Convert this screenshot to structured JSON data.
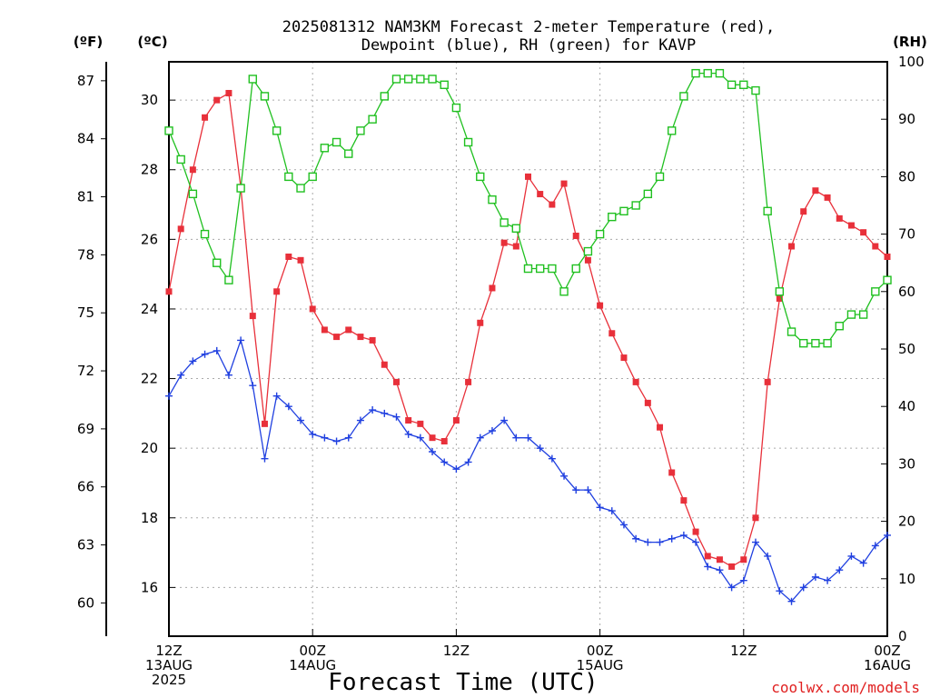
{
  "header": {
    "title_line1": "2025081312 NAM3KM Forecast 2-meter Temperature (red),",
    "title_line2": "Dewpoint (blue), RH (green) for KAVP"
  },
  "credit": "coolwx.com/models",
  "chart_data": {
    "type": "line",
    "title": "2025081312 NAM3KM Forecast 2-meter Temperature (red), Dewpoint (blue), RH (green) for KAVP",
    "xlabel": "Forecast Time (UTC)",
    "x_start": "2025-08-13 12Z",
    "x_step_hours": 1,
    "x_ticks": [
      {
        "line1": "12Z",
        "line2": "13AUG",
        "line3": "2025"
      },
      {
        "line1": "00Z",
        "line2": "14AUG",
        "line3": ""
      },
      {
        "line1": "12Z",
        "line2": "",
        "line3": ""
      },
      {
        "line1": "00Z",
        "line2": "15AUG",
        "line3": ""
      },
      {
        "line1": "12Z",
        "line2": "",
        "line3": ""
      },
      {
        "line1": "00Z",
        "line2": "16AUG",
        "line3": ""
      }
    ],
    "y_celsius": {
      "label": "(ºC)",
      "ticks": [
        16,
        18,
        20,
        22,
        24,
        26,
        28,
        30
      ],
      "ylim": [
        14.6,
        31.1
      ]
    },
    "y_fahrenheit": {
      "label": "(ºF)",
      "ticks": [
        60,
        63,
        66,
        69,
        72,
        75,
        78,
        81,
        84,
        87
      ]
    },
    "y_rh": {
      "label": "(RH)",
      "ticks": [
        0,
        10,
        20,
        30,
        40,
        50,
        60,
        70,
        80,
        90,
        100
      ],
      "ylim": [
        0,
        100
      ]
    },
    "grid": true,
    "series": [
      {
        "name": "Temperature",
        "axis": "C",
        "color": "#e8303a",
        "marker": "filled-square",
        "values": [
          24.5,
          26.3,
          28.0,
          29.5,
          30.0,
          30.2,
          27.5,
          23.8,
          20.7,
          24.5,
          25.5,
          25.4,
          24.0,
          23.4,
          23.2,
          23.4,
          23.2,
          23.1,
          22.4,
          21.9,
          20.8,
          20.7,
          20.3,
          20.2,
          20.8,
          21.9,
          23.6,
          24.6,
          25.9,
          25.8,
          27.8,
          27.3,
          27.0,
          27.6,
          26.1,
          25.4,
          24.1,
          23.3,
          22.6,
          21.9,
          21.3,
          20.6,
          19.3,
          18.5,
          17.6,
          16.9,
          16.8,
          16.6,
          16.8,
          18.0,
          21.9,
          24.3,
          25.8,
          26.8,
          27.4,
          27.2,
          26.6,
          26.4,
          26.2,
          25.8,
          25.5
        ]
      },
      {
        "name": "Dewpoint",
        "axis": "C",
        "color": "#2040e0",
        "marker": "plus",
        "values": [
          21.5,
          22.1,
          22.5,
          22.7,
          22.8,
          22.1,
          23.1,
          21.8,
          19.7,
          21.5,
          21.2,
          20.8,
          20.4,
          20.3,
          20.2,
          20.3,
          20.8,
          21.1,
          21.0,
          20.9,
          20.4,
          20.3,
          19.9,
          19.6,
          19.4,
          19.6,
          20.3,
          20.5,
          20.8,
          20.3,
          20.3,
          20.0,
          19.7,
          19.2,
          18.8,
          18.8,
          18.3,
          18.2,
          17.8,
          17.4,
          17.3,
          17.3,
          17.4,
          17.5,
          17.3,
          16.6,
          16.5,
          16.0,
          16.2,
          17.3,
          16.9,
          15.9,
          15.6,
          16.0,
          16.3,
          16.2,
          16.5,
          16.9,
          16.7,
          17.2,
          17.5
        ]
      },
      {
        "name": "RH",
        "axis": "RH",
        "color": "#20c020",
        "marker": "open-square",
        "values": [
          88,
          83,
          77,
          70,
          65,
          62,
          78,
          97,
          94,
          88,
          80,
          78,
          80,
          85,
          86,
          84,
          88,
          90,
          94,
          97,
          97,
          97,
          97,
          96,
          92,
          86,
          80,
          76,
          72,
          71,
          64,
          64,
          64,
          60,
          64,
          67,
          70,
          73,
          74,
          75,
          77,
          80,
          88,
          94,
          98,
          98,
          98,
          96,
          96,
          95,
          74,
          60,
          53,
          51,
          51,
          51,
          54,
          56,
          56,
          60,
          62
        ]
      }
    ]
  }
}
